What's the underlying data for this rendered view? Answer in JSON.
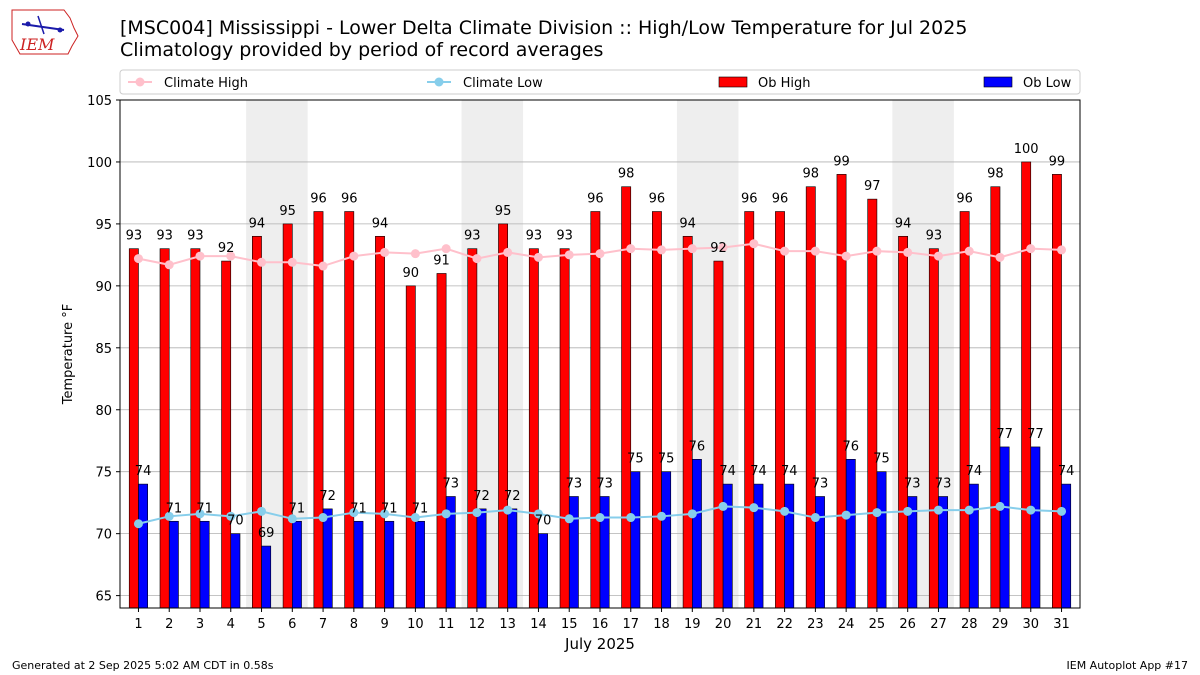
{
  "header": {
    "title_line1": "[MSC004] Mississippi - Lower Delta Climate Division :: High/Low Temperature for Jul 2025",
    "title_line2": "Climatology provided by period of record averages"
  },
  "logo": {
    "text": "IEM"
  },
  "footer": {
    "left": "Generated at 2 Sep 2025 5:02 AM CDT in 0.58s",
    "right": "IEM Autoplot App #17"
  },
  "colors": {
    "ob_high": "#ff0000",
    "ob_low": "#0000ff",
    "climate_high": "#ffc0cb",
    "climate_low": "#87ceeb",
    "weekend_band": "#eeeeee",
    "grid": "#b0b0b0"
  },
  "chart_data": {
    "type": "bar",
    "xlabel": "July 2025",
    "ylabel": "Temperature °F",
    "ylim": [
      64,
      105
    ],
    "yticks": [
      65,
      70,
      75,
      80,
      85,
      90,
      95,
      100,
      105
    ],
    "grid": true,
    "legend_placement": "top",
    "categories": [
      "1",
      "2",
      "3",
      "4",
      "5",
      "6",
      "7",
      "8",
      "9",
      "10",
      "11",
      "12",
      "13",
      "14",
      "15",
      "16",
      "17",
      "18",
      "19",
      "20",
      "21",
      "22",
      "23",
      "24",
      "25",
      "26",
      "27",
      "28",
      "29",
      "30",
      "31"
    ],
    "shaded_days": [
      [
        5,
        6
      ],
      [
        12,
        13
      ],
      [
        19,
        20
      ],
      [
        26,
        27
      ]
    ],
    "series": [
      {
        "name": "Ob High",
        "kind": "bar",
        "values": [
          93,
          93,
          93,
          92,
          94,
          95,
          96,
          96,
          94,
          90,
          91,
          93,
          95,
          93,
          93,
          96,
          98,
          96,
          94,
          92,
          96,
          96,
          98,
          99,
          97,
          94,
          93,
          96,
          98,
          100,
          99
        ]
      },
      {
        "name": "Ob Low",
        "kind": "bar",
        "values": [
          74,
          71,
          71,
          70,
          69,
          71,
          72,
          71,
          71,
          71,
          73,
          72,
          72,
          70,
          73,
          73,
          75,
          75,
          76,
          74,
          74,
          74,
          73,
          76,
          75,
          73,
          73,
          74,
          77,
          77,
          74
        ]
      },
      {
        "name": "Climate High",
        "kind": "line",
        "values": [
          92.2,
          91.7,
          92.4,
          92.4,
          91.9,
          91.9,
          91.6,
          92.4,
          92.7,
          92.6,
          93.0,
          92.2,
          92.7,
          92.3,
          92.5,
          92.6,
          93.0,
          92.9,
          93.0,
          93.1,
          93.4,
          92.8,
          92.8,
          92.4,
          92.8,
          92.7,
          92.4,
          92.8,
          92.3,
          93.0,
          92.9
        ]
      },
      {
        "name": "Climate Low",
        "kind": "line",
        "values": [
          70.8,
          71.4,
          71.6,
          71.4,
          71.8,
          71.2,
          71.3,
          71.7,
          71.6,
          71.3,
          71.6,
          71.7,
          71.9,
          71.6,
          71.2,
          71.3,
          71.3,
          71.4,
          71.6,
          72.2,
          72.1,
          71.8,
          71.3,
          71.5,
          71.7,
          71.8,
          71.9,
          71.9,
          72.2,
          71.9,
          71.8
        ]
      }
    ]
  }
}
